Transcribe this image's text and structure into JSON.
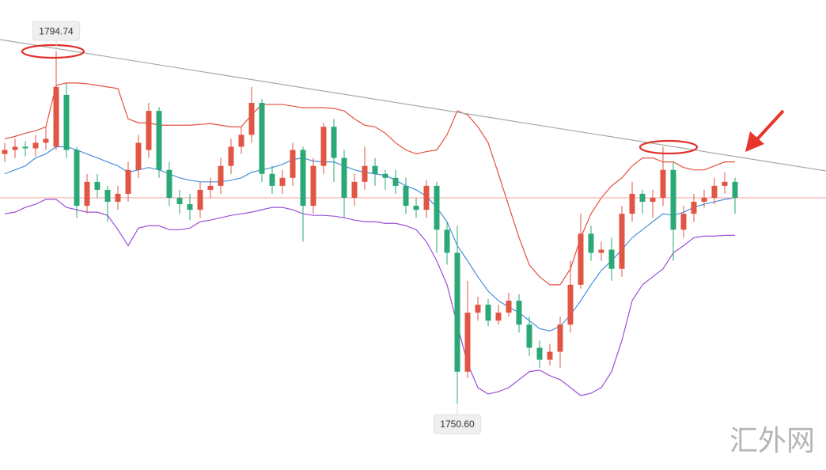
{
  "chart_data": {
    "type": "candlestick",
    "up_color": "#e05543",
    "down_color": "#2aa876",
    "ylim": [
      1742.77,
      1801.2
    ],
    "open": [
      1781.9,
      1782.4,
      1782.8,
      1782.6,
      1783.3,
      1782.8,
      1789.3,
      1782.4,
      1775.4,
      1778.4,
      1777.4,
      1775.9,
      1776.9,
      1779.9,
      1782.4,
      1787.3,
      1779.9,
      1776.4,
      1775.6,
      1774.9,
      1777.4,
      1777.9,
      1780.4,
      1782.8,
      1784.3,
      1788.3,
      1779.4,
      1777.9,
      1778.9,
      1782.4,
      1775.4,
      1780.4,
      1785.3,
      1781.4,
      1776.4,
      1778.4,
      1780.4,
      1779.4,
      1778.9,
      1777.9,
      1775.4,
      1774.9,
      1777.9,
      1772.4,
      1769.5,
      1754.6,
      1762.0,
      1763.0,
      1761.0,
      1762.0,
      1763.5,
      1760.5,
      1757.6,
      1756.1,
      1757.1,
      1760.5,
      1765.5,
      1771.9,
      1769.5,
      1769.9,
      1767.5,
      1774.4,
      1776.9,
      1775.9,
      1776.4,
      1779.9,
      1772.4,
      1774.4,
      1775.9,
      1776.4,
      1777.9,
      1778.4
    ],
    "high": [
      1783.3,
      1783.8,
      1783.5,
      1784.3,
      1785.3,
      1794.74,
      1790.8,
      1782.8,
      1779.4,
      1779.4,
      1777.9,
      1777.9,
      1780.9,
      1784.3,
      1788.3,
      1787.8,
      1780.9,
      1777.4,
      1776.9,
      1778.4,
      1778.9,
      1781.4,
      1783.8,
      1785.3,
      1790.3,
      1788.8,
      1780.4,
      1779.9,
      1783.3,
      1782.8,
      1781.4,
      1785.8,
      1786.3,
      1782.4,
      1779.4,
      1782.8,
      1781.4,
      1779.9,
      1779.9,
      1778.9,
      1776.4,
      1778.6,
      1778.4,
      1773.4,
      1772.9,
      1766.0,
      1764.0,
      1763.7,
      1763.0,
      1764.5,
      1764.3,
      1761.5,
      1758.5,
      1758.1,
      1761.5,
      1768.5,
      1774.4,
      1772.9,
      1770.9,
      1771.4,
      1775.4,
      1778.4,
      1777.4,
      1777.4,
      1782.8,
      1780.9,
      1775.4,
      1776.9,
      1777.4,
      1778.9,
      1779.6,
      1778.9
    ],
    "low": [
      1780.9,
      1781.4,
      1781.6,
      1781.6,
      1782.4,
      1782.4,
      1781.4,
      1773.9,
      1774.4,
      1776.4,
      1773.4,
      1774.9,
      1775.9,
      1778.9,
      1781.4,
      1778.9,
      1775.4,
      1774.4,
      1773.6,
      1773.9,
      1776.4,
      1776.9,
      1779.4,
      1781.9,
      1783.3,
      1778.4,
      1776.9,
      1776.9,
      1777.9,
      1770.9,
      1774.4,
      1779.4,
      1778.4,
      1773.9,
      1775.4,
      1777.4,
      1777.9,
      1777.4,
      1776.9,
      1774.4,
      1773.9,
      1773.9,
      1769.5,
      1768.0,
      1750.6,
      1753.8,
      1761.0,
      1760.3,
      1760.5,
      1761.5,
      1759.5,
      1756.6,
      1755.1,
      1755.4,
      1755.1,
      1759.5,
      1765.0,
      1768.5,
      1768.5,
      1766.0,
      1766.5,
      1773.4,
      1774.4,
      1773.9,
      1775.4,
      1768.5,
      1771.4,
      1773.4,
      1775.2,
      1775.6,
      1776.9,
      1774.4
    ],
    "close": [
      1782.4,
      1782.8,
      1782.6,
      1783.3,
      1783.8,
      1790.3,
      1782.4,
      1775.4,
      1778.4,
      1777.4,
      1775.9,
      1776.9,
      1779.9,
      1783.3,
      1787.3,
      1779.9,
      1776.4,
      1775.6,
      1774.9,
      1777.4,
      1777.9,
      1780.4,
      1782.8,
      1784.3,
      1788.3,
      1779.4,
      1777.9,
      1778.9,
      1782.4,
      1775.4,
      1780.4,
      1785.3,
      1781.4,
      1776.4,
      1778.4,
      1780.4,
      1779.4,
      1778.9,
      1777.9,
      1775.4,
      1774.9,
      1777.9,
      1772.4,
      1769.5,
      1754.6,
      1762.0,
      1763.0,
      1761.0,
      1762.0,
      1763.5,
      1760.5,
      1757.6,
      1756.1,
      1757.1,
      1760.5,
      1765.5,
      1771.9,
      1769.5,
      1769.9,
      1767.5,
      1774.4,
      1776.9,
      1775.9,
      1776.4,
      1779.9,
      1772.4,
      1774.4,
      1775.9,
      1776.4,
      1777.9,
      1778.4,
      1776.4
    ],
    "series": [
      {
        "color": "#e2533f",
        "values": [
          1783.8,
          1784.1,
          1784.5,
          1784.8,
          1785.3,
          1790.5,
          1790.8,
          1790.8,
          1790.7,
          1790.5,
          1790.3,
          1790.1,
          1786.3,
          1785.8,
          1785.8,
          1785.5,
          1785.5,
          1785.5,
          1785.5,
          1785.6,
          1785.7,
          1785.5,
          1785.3,
          1785.3,
          1786.8,
          1788.1,
          1788.1,
          1788.1,
          1787.9,
          1787.7,
          1787.7,
          1787.7,
          1787.6,
          1787.3,
          1786.3,
          1785.5,
          1785.3,
          1784.5,
          1783.3,
          1782.4,
          1781.9,
          1782.2,
          1782.4,
          1784.3,
          1787.3,
          1786.8,
          1785.3,
          1783.3,
          1779.4,
          1775.4,
          1771.4,
          1768.0,
          1766.5,
          1765.5,
          1765.5,
          1767.5,
          1771.4,
          1774.4,
          1776.4,
          1777.9,
          1778.9,
          1780.4,
          1781.4,
          1781.4,
          1780.9,
          1780.9,
          1780.2,
          1779.9,
          1779.9,
          1780.4,
          1780.9,
          1780.9
        ]
      },
      {
        "color": "#4a8fdc",
        "values": [
          1779.4,
          1779.9,
          1780.4,
          1781.4,
          1781.9,
          1782.8,
          1782.8,
          1782.4,
          1781.9,
          1781.4,
          1780.9,
          1780.4,
          1779.6,
          1779.9,
          1780.2,
          1779.9,
          1779.4,
          1778.9,
          1778.6,
          1778.4,
          1778.4,
          1778.4,
          1778.6,
          1778.9,
          1779.6,
          1779.9,
          1780.2,
          1780.6,
          1781.2,
          1781.4,
          1781.0,
          1780.9,
          1780.9,
          1780.4,
          1779.9,
          1779.6,
          1779.4,
          1779.2,
          1778.6,
          1777.9,
          1777.4,
          1776.6,
          1775.2,
          1773.4,
          1770.4,
          1768.5,
          1766.5,
          1764.7,
          1763.5,
          1762.7,
          1762.0,
          1761.0,
          1760.0,
          1759.7,
          1760.3,
          1761.7,
          1763.5,
          1765.5,
          1767.3,
          1768.5,
          1769.9,
          1771.4,
          1772.4,
          1773.4,
          1774.4,
          1774.2,
          1774.6,
          1775.2,
          1775.6,
          1775.9,
          1776.2,
          1776.4
        ]
      },
      {
        "color": "#9b4fd6",
        "values": [
          1774.4,
          1774.6,
          1775.2,
          1775.6,
          1776.2,
          1776.2,
          1775.2,
          1774.9,
          1774.6,
          1774.6,
          1774.2,
          1772.4,
          1770.4,
          1772.6,
          1772.9,
          1772.9,
          1772.4,
          1772.4,
          1772.6,
          1773.4,
          1773.6,
          1773.9,
          1774.2,
          1774.4,
          1774.6,
          1774.9,
          1775.2,
          1775.2,
          1774.9,
          1774.4,
          1774.2,
          1774.2,
          1774.1,
          1773.9,
          1773.6,
          1773.4,
          1773.4,
          1773.2,
          1773.2,
          1772.9,
          1772.4,
          1770.9,
          1768.5,
          1765.5,
          1760.5,
          1755.6,
          1752.6,
          1751.8,
          1752.1,
          1752.6,
          1753.6,
          1754.6,
          1754.8,
          1754.1,
          1753.6,
          1752.6,
          1751.6,
          1751.9,
          1752.6,
          1754.6,
          1758.5,
          1763.5,
          1765.5,
          1766.5,
          1767.5,
          1769.5,
          1770.4,
          1771.4,
          1771.6,
          1771.6,
          1771.7,
          1771.7
        ]
      }
    ],
    "annotations": [
      {
        "value": 1794.74,
        "label": "1794.74"
      },
      {
        "value": 1750.6,
        "label": "1750.60"
      }
    ],
    "watermark": "汇外网"
  }
}
